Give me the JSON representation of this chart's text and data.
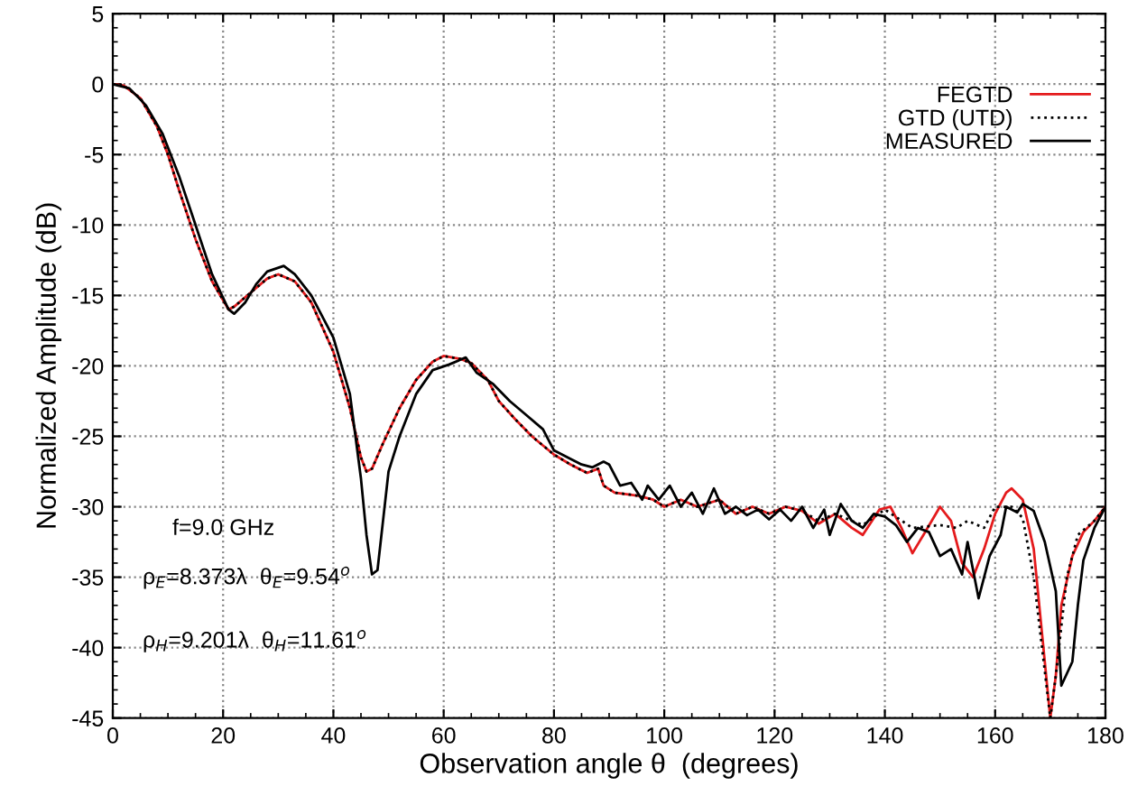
{
  "chart_data": {
    "type": "line",
    "xlabel": "Observation angle θ  (degrees)",
    "ylabel": "Normalized Amplitude (dB)",
    "xlim": [
      0,
      180
    ],
    "ylim": [
      -45,
      5
    ],
    "xticks": [
      0,
      20,
      40,
      60,
      80,
      100,
      120,
      140,
      160,
      180
    ],
    "yticks": [
      -45,
      -40,
      -35,
      -30,
      -25,
      -20,
      -15,
      -10,
      -5,
      0,
      5
    ],
    "grid": true,
    "legend": "top right",
    "annotations": [
      "f=9.0 GHz",
      "ρ$_{E}$=8.373λ  θ$_{E}$=9.54$^{o}$",
      "ρ$_{H}$=9.201λ  θ$_{H}$=11.61$^{o}$"
    ],
    "series": [
      {
        "name": "FEGTD",
        "color": "#e41a1c",
        "line_style": "solid",
        "x": [
          0,
          2,
          5,
          8,
          10,
          12,
          15,
          18,
          21,
          22,
          25,
          28,
          30,
          33,
          36,
          40,
          43,
          45,
          46,
          47,
          49,
          52,
          55,
          58,
          60,
          63,
          65,
          68,
          70,
          73,
          76,
          80,
          83,
          86,
          88,
          89,
          91,
          95,
          98,
          100,
          103,
          106,
          110,
          113,
          116,
          119,
          122,
          125,
          128,
          131,
          134,
          136,
          139,
          141,
          143,
          145,
          147,
          150,
          152,
          154,
          156,
          158,
          160,
          162,
          163,
          165,
          167,
          169,
          170,
          171,
          172,
          174,
          176,
          178,
          180
        ],
        "values": [
          0,
          -0.1,
          -1,
          -3,
          -5,
          -7.5,
          -11,
          -14,
          -16,
          -15.8,
          -14.8,
          -13.8,
          -13.5,
          -14,
          -15.5,
          -19,
          -23,
          -26.5,
          -27.5,
          -27.3,
          -25.5,
          -23,
          -21,
          -19.7,
          -19.3,
          -19.5,
          -19.8,
          -21,
          -22.5,
          -23.8,
          -25,
          -26.3,
          -27,
          -27.6,
          -27.3,
          -28.5,
          -29,
          -29.2,
          -29.5,
          -30,
          -29.5,
          -30,
          -29.5,
          -30.5,
          -30,
          -30.5,
          -30,
          -30.3,
          -31.2,
          -30.5,
          -31.5,
          -32,
          -30.2,
          -30,
          -31.5,
          -33.3,
          -32,
          -30,
          -31,
          -34,
          -35,
          -33,
          -30.5,
          -29,
          -28.7,
          -29.5,
          -33,
          -41,
          -45,
          -42,
          -37,
          -33.5,
          -31.8,
          -31,
          -30
        ]
      },
      {
        "name": "GTD (UTD)",
        "color": "#000000",
        "line_style": "dotted",
        "x": [
          0,
          2,
          5,
          8,
          10,
          12,
          15,
          18,
          21,
          22,
          25,
          28,
          30,
          33,
          36,
          40,
          43,
          45,
          46,
          47,
          49,
          52,
          55,
          58,
          60,
          63,
          65,
          68,
          70,
          73,
          76,
          80,
          83,
          86,
          88,
          89,
          91,
          95,
          98,
          100,
          103,
          106,
          110,
          113,
          116,
          119,
          122,
          125,
          128,
          131,
          134,
          136,
          140,
          145,
          150,
          153,
          155,
          158,
          160,
          163,
          165,
          167,
          168.5,
          170,
          171,
          173,
          175,
          178,
          180
        ],
        "values": [
          0,
          -0.1,
          -1,
          -3,
          -5,
          -7.5,
          -11,
          -14,
          -16,
          -15.8,
          -14.8,
          -13.8,
          -13.5,
          -14,
          -15.5,
          -19,
          -23,
          -26.5,
          -27.5,
          -27.3,
          -25.5,
          -23,
          -21,
          -19.7,
          -19.3,
          -19.5,
          -19.8,
          -21,
          -22.5,
          -23.8,
          -25,
          -26.3,
          -27,
          -27.6,
          -27.3,
          -28.5,
          -29,
          -29.2,
          -29.5,
          -30,
          -29.5,
          -30,
          -29.5,
          -30.5,
          -30,
          -30.5,
          -30,
          -30.3,
          -31,
          -30.5,
          -31,
          -31.3,
          -30.2,
          -31.5,
          -31.3,
          -31.5,
          -31,
          -31.5,
          -30,
          -30,
          -30.8,
          -35,
          -40,
          -45,
          -42,
          -35,
          -32,
          -31,
          -30
        ]
      },
      {
        "name": "MEASURED",
        "color": "#000000",
        "line_style": "solid",
        "x": [
          0,
          3,
          6,
          9,
          12,
          15,
          18,
          21,
          22,
          24,
          26,
          28,
          31,
          33,
          36,
          40,
          43,
          45,
          46,
          47,
          48,
          49,
          50,
          52,
          55,
          58,
          61,
          64,
          66,
          69,
          72,
          75,
          78,
          80,
          83,
          85,
          87,
          89,
          90,
          92,
          94,
          96,
          97,
          99,
          101,
          103,
          105,
          107,
          109,
          111,
          113,
          115,
          117,
          119,
          121,
          123,
          125,
          127,
          129,
          130,
          132,
          134,
          136,
          138,
          140,
          142,
          144,
          146,
          148,
          150,
          152,
          154,
          155,
          157,
          159,
          161,
          162,
          164,
          165,
          167,
          169,
          171,
          172,
          174,
          175,
          176,
          178,
          180
        ],
        "values": [
          0,
          -0.3,
          -1.5,
          -3.5,
          -6.5,
          -10,
          -13.5,
          -16,
          -16.3,
          -15.5,
          -14.2,
          -13.3,
          -12.9,
          -13.5,
          -15,
          -18,
          -22,
          -28,
          -32,
          -34.8,
          -34.5,
          -31,
          -27.5,
          -25,
          -22,
          -20.3,
          -19.9,
          -19.4,
          -20.5,
          -21.3,
          -22.5,
          -23.5,
          -24.5,
          -26,
          -26.6,
          -27,
          -27.2,
          -26.8,
          -27,
          -28.5,
          -28.3,
          -29.5,
          -28.5,
          -29.5,
          -28.5,
          -30,
          -29,
          -30.5,
          -28.7,
          -30.5,
          -30,
          -30.6,
          -30.2,
          -30.9,
          -30.2,
          -31,
          -30,
          -31.5,
          -30.2,
          -32,
          -29.8,
          -31,
          -31.5,
          -30.5,
          -30.7,
          -31.3,
          -32.5,
          -31.5,
          -31.8,
          -33.5,
          -33,
          -34.8,
          -32.5,
          -36.5,
          -33.5,
          -32,
          -30,
          -30.4,
          -29.8,
          -30.3,
          -32.5,
          -36,
          -42.7,
          -41,
          -37,
          -33.8,
          -31.5,
          -30
        ]
      }
    ]
  }
}
